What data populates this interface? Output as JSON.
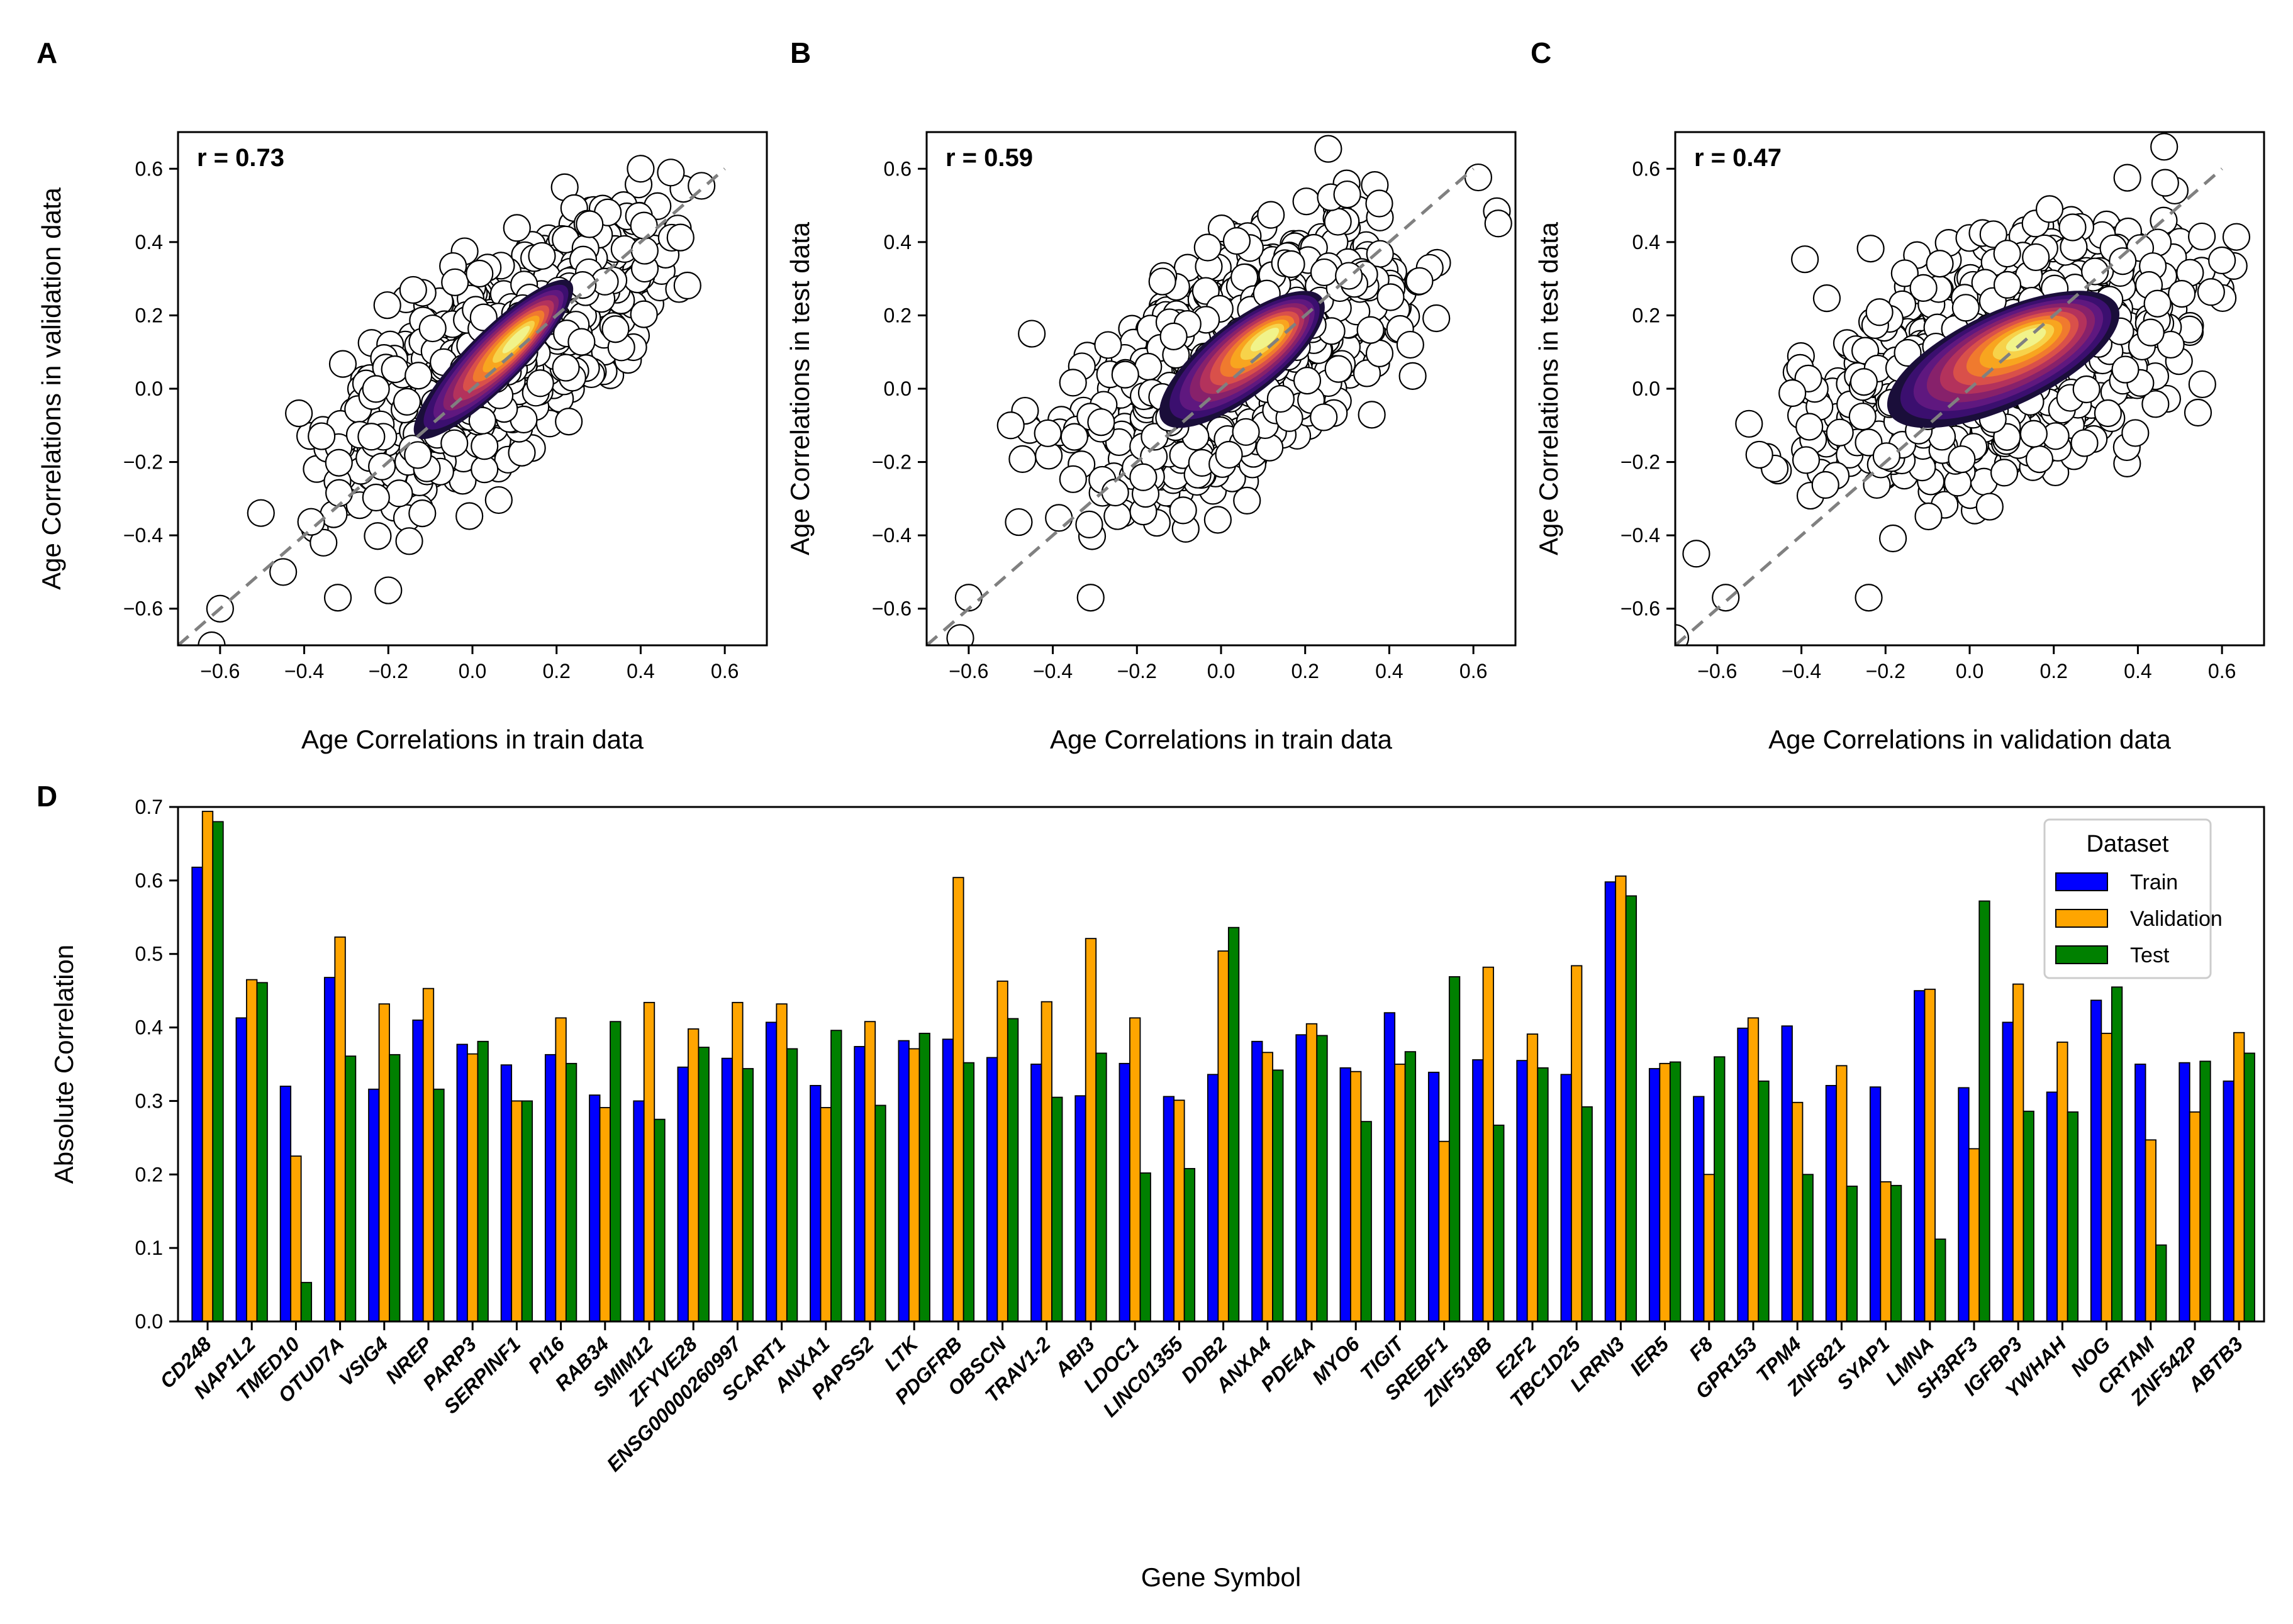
{
  "scatter_panels": [
    {
      "letter": "A",
      "r_text": "r = 0.73",
      "xlabel": "Age Correlations in train data",
      "ylabel": "Age Correlations in validation data"
    },
    {
      "letter": "B",
      "r_text": "r = 0.59",
      "xlabel": "Age Correlations in train data",
      "ylabel": "Age Correlations in test data"
    },
    {
      "letter": "C",
      "r_text": "r = 0.47",
      "xlabel": "Age Correlations in validation data",
      "ylabel": "Age Correlations in test data"
    }
  ],
  "bar_panel": {
    "letter": "D",
    "xlabel": "Gene Symbol",
    "ylabel": "Absolute Correlation",
    "legend_title": "Dataset"
  },
  "colors": {
    "train": "#0000ff",
    "validation": "#ffa500",
    "test": "#008000",
    "diagonal": "#808080",
    "density": [
      "#1a0e3a",
      "#3b0f6f",
      "#5f187f",
      "#87216b",
      "#b3325c",
      "#d9504a",
      "#f07a2e",
      "#f8a51f",
      "#f7d24a",
      "#f1f38a"
    ]
  },
  "chart_data": [
    {
      "type": "scatter",
      "title": "",
      "xlabel": "Age Correlations in train data",
      "ylabel": "Age Correlations in validation data",
      "xlim": [
        -0.7,
        0.7
      ],
      "ylim": [
        -0.7,
        0.7
      ],
      "xticks": [
        "−0.6",
        "−0.4",
        "−0.2",
        "0.0",
        "0.2",
        "0.4",
        "0.6"
      ],
      "yticks": [
        "−0.6",
        "−0.4",
        "−0.2",
        "0.0",
        "0.2",
        "0.4",
        "0.6"
      ],
      "annotation": "r = 0.73",
      "correlation": 0.73,
      "center": [
        0.05,
        0.08
      ],
      "spread": [
        0.17,
        0.17
      ],
      "density_angle_deg": 45,
      "density_axes": [
        0.26,
        0.075
      ],
      "diagonal": true,
      "outliers": [
        [
          -0.6,
          -0.6
        ],
        [
          -0.62,
          -0.7
        ],
        [
          0.4,
          0.6
        ],
        [
          -0.2,
          -0.55
        ],
        [
          -0.32,
          -0.57
        ],
        [
          -0.45,
          -0.5
        ]
      ]
    },
    {
      "type": "scatter",
      "title": "",
      "xlabel": "Age Correlations in train data",
      "ylabel": "Age Correlations in test data",
      "xlim": [
        -0.7,
        0.7
      ],
      "ylim": [
        -0.7,
        0.7
      ],
      "xticks": [
        "−0.6",
        "−0.4",
        "−0.2",
        "0.0",
        "0.2",
        "0.4",
        "0.6"
      ],
      "yticks": [
        "−0.6",
        "−0.4",
        "−0.2",
        "0.0",
        "0.2",
        "0.4",
        "0.6"
      ],
      "annotation": "r = 0.59",
      "correlation": 0.59,
      "center": [
        0.05,
        0.08
      ],
      "spread": [
        0.17,
        0.17
      ],
      "density_angle_deg": 38,
      "density_axes": [
        0.24,
        0.1
      ],
      "diagonal": true,
      "outliers": [
        [
          -0.6,
          -0.57
        ],
        [
          -0.62,
          -0.68
        ],
        [
          -0.31,
          -0.57
        ],
        [
          0.3,
          0.53
        ],
        [
          0.45,
          0.12
        ],
        [
          -0.45,
          0.15
        ],
        [
          -0.5,
          -0.1
        ]
      ]
    },
    {
      "type": "scatter",
      "title": "",
      "xlabel": "Age Correlations in validation data",
      "ylabel": "Age Correlations in test data",
      "xlim": [
        -0.7,
        0.7
      ],
      "ylim": [
        -0.7,
        0.7
      ],
      "xticks": [
        "−0.6",
        "−0.4",
        "−0.2",
        "0.0",
        "0.2",
        "0.4",
        "0.6"
      ],
      "yticks": [
        "−0.6",
        "−0.4",
        "−0.2",
        "0.0",
        "0.2",
        "0.4",
        "0.6"
      ],
      "annotation": "r = 0.47",
      "correlation": 0.47,
      "center": [
        0.08,
        0.08
      ],
      "spread": [
        0.2,
        0.16
      ],
      "density_angle_deg": 25,
      "density_axes": [
        0.3,
        0.13
      ],
      "diagonal": true,
      "outliers": [
        [
          -0.58,
          -0.57
        ],
        [
          -0.7,
          -0.68
        ],
        [
          -0.24,
          -0.57
        ],
        [
          0.19,
          0.49
        ],
        [
          0.6,
          0.35
        ],
        [
          -0.65,
          -0.45
        ],
        [
          -0.5,
          -0.18
        ]
      ]
    },
    {
      "type": "bar",
      "title": "",
      "xlabel": "Gene Symbol",
      "ylabel": "Absolute Correlation",
      "ylim": [
        0,
        0.7
      ],
      "yticks": [
        "0.0",
        "0.1",
        "0.2",
        "0.3",
        "0.4",
        "0.5",
        "0.6",
        "0.7"
      ],
      "legend": {
        "title": "Dataset",
        "position": "top-right"
      },
      "categories": [
        "CD248",
        "NAP1L2",
        "TMED10",
        "OTUD7A",
        "VSIG4",
        "NREP",
        "PARP3",
        "SERPINF1",
        "PI16",
        "RAB34",
        "SMIM12",
        "ZFYVE28",
        "ENSG00000260997",
        "SCART1",
        "ANXA1",
        "PAPSS2",
        "LTK",
        "PDGFRB",
        "OBSCN",
        "TRAV1-2",
        "ABI3",
        "LDOC1",
        "LINC01355",
        "DDB2",
        "ANXA4",
        "PDE4A",
        "MYO6",
        "TIGIT",
        "SREBF1",
        "ZNF518B",
        "E2F2",
        "TBC1D25",
        "LRRN3",
        "IER5",
        "F8",
        "GPR153",
        "TPM4",
        "ZNF821",
        "SYAP1",
        "LMNA",
        "SH3RF3",
        "IGFBP3",
        "YWHAH",
        "NOG",
        "CRTAM",
        "ZNF542P",
        "ABTB3"
      ],
      "series": [
        {
          "name": "Train",
          "values": [
            0.618,
            0.413,
            0.32,
            0.468,
            0.316,
            0.41,
            0.377,
            0.349,
            0.363,
            0.308,
            0.3,
            0.346,
            0.358,
            0.407,
            0.321,
            0.374,
            0.382,
            0.384,
            0.359,
            0.35,
            0.307,
            0.351,
            0.306,
            0.336,
            0.381,
            0.39,
            0.345,
            0.42,
            0.339,
            0.356,
            0.355,
            0.336,
            0.598,
            0.344,
            0.306,
            0.399,
            0.402,
            0.321,
            0.319,
            0.45,
            0.318,
            0.407,
            0.312,
            0.437,
            0.35,
            0.352,
            0.327
          ]
        },
        {
          "name": "Validation",
          "values": [
            0.694,
            0.465,
            0.225,
            0.523,
            0.432,
            0.453,
            0.364,
            0.3,
            0.413,
            0.291,
            0.434,
            0.398,
            0.434,
            0.432,
            0.291,
            0.408,
            0.371,
            0.604,
            0.463,
            0.435,
            0.521,
            0.413,
            0.301,
            0.504,
            0.366,
            0.405,
            0.34,
            0.35,
            0.245,
            0.482,
            0.391,
            0.484,
            0.606,
            0.351,
            0.2,
            0.413,
            0.298,
            0.348,
            0.19,
            0.452,
            0.235,
            0.459,
            0.38,
            0.392,
            0.247,
            0.285,
            0.393
          ]
        },
        {
          "name": "Test",
          "values": [
            0.68,
            0.461,
            0.053,
            0.361,
            0.363,
            0.316,
            0.381,
            0.3,
            0.351,
            0.408,
            0.275,
            0.373,
            0.344,
            0.371,
            0.396,
            0.294,
            0.392,
            0.352,
            0.412,
            0.305,
            0.365,
            0.202,
            0.208,
            0.536,
            0.342,
            0.389,
            0.272,
            0.367,
            0.469,
            0.267,
            0.345,
            0.292,
            0.579,
            0.353,
            0.36,
            0.327,
            0.2,
            0.184,
            0.185,
            0.112,
            0.572,
            0.286,
            0.285,
            0.455,
            0.104,
            0.354,
            0.365
          ]
        }
      ]
    }
  ]
}
